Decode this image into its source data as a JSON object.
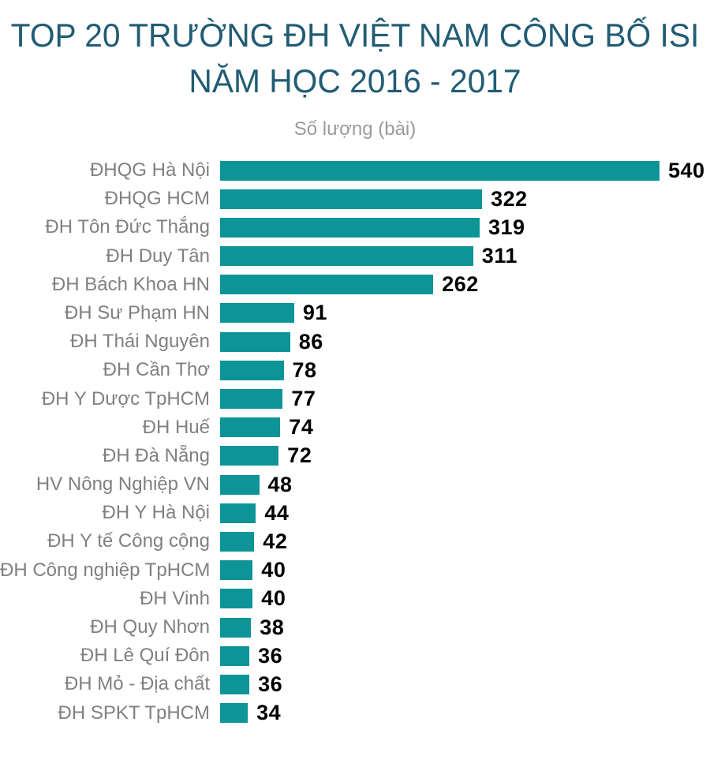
{
  "title": {
    "line1": "TOP 20 TRƯỜNG ĐH VIỆT NAM CÔNG BỐ ISI",
    "line2": "NĂM HỌC 2016 - 2017"
  },
  "subtitle": "Số lượng (bài)",
  "colors": {
    "bar": "#0d9496",
    "title": "#215c74",
    "category_label": "#808080",
    "subtitle": "#9a9a9a",
    "value_label": "#000000"
  },
  "chart_data": {
    "type": "bar",
    "orientation": "horizontal",
    "title": "TOP 20 TRƯỜNG ĐH VIỆT NAM CÔNG BỐ ISI NĂM HỌC 2016 - 2017",
    "xlabel": "Số lượng (bài)",
    "xlim": [
      0,
      540
    ],
    "grid": false,
    "legend": false,
    "data_labels": true,
    "categories": [
      "ĐHQG Hà Nội",
      "ĐHQG HCM",
      "ĐH Tôn Đức Thắng",
      "ĐH Duy Tân",
      "ĐH Bách Khoa HN",
      "ĐH Sư Phạm HN",
      "ĐH Thái Nguyên",
      "ĐH Cần Thơ",
      "ĐH Y Dược TpHCM",
      "ĐH Huế",
      "ĐH Đà Nẵng",
      "HV Nông Nghiệp VN",
      "ĐH Y Hà Nội",
      "ĐH Y tế Công cộng",
      "ĐH Công nghiệp TpHCM",
      "ĐH Vinh",
      "ĐH Quy Nhơn",
      "ĐH Lê Quí Đôn",
      "ĐH Mỏ - Địa chất",
      "ĐH SPKT TpHCM"
    ],
    "values": [
      540,
      322,
      319,
      311,
      262,
      91,
      86,
      78,
      77,
      74,
      72,
      48,
      44,
      42,
      40,
      40,
      38,
      36,
      36,
      34
    ]
  }
}
